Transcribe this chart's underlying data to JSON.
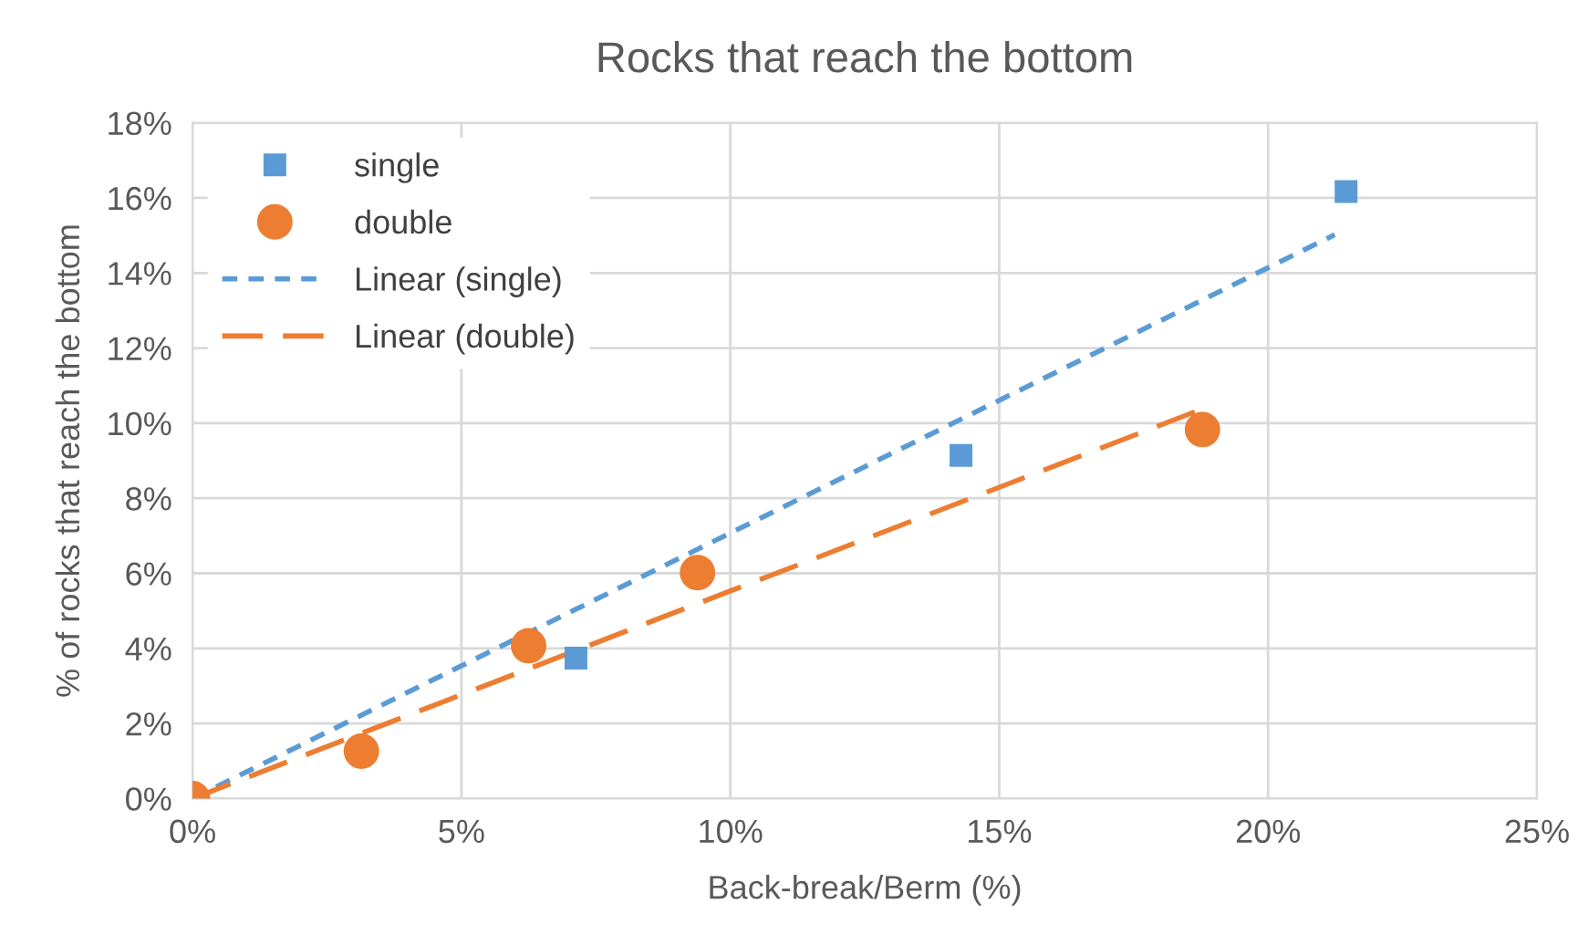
{
  "chart_data": {
    "type": "scatter",
    "title": "Rocks that reach the bottom",
    "xlabel": "Back-break/Berm (%)",
    "ylabel": "% of rocks that reach the bottom",
    "series": [
      {
        "name": "single",
        "color": "#5b9bd5",
        "marker": "square",
        "x": [
          7.13,
          14.29,
          21.45
        ],
        "values": [
          3.74,
          9.14,
          16.17
        ]
      },
      {
        "name": "double",
        "color": "#ed7d31",
        "marker": "circle",
        "x": [
          0,
          3.14,
          6.25,
          9.39,
          18.78
        ],
        "values": [
          0,
          1.26,
          4.07,
          6.02,
          9.83
        ]
      },
      {
        "name": "Linear (single)",
        "type": "line",
        "color": "#5b9bd5",
        "line_style": "dotted",
        "x": [
          0,
          21.24
        ],
        "values": [
          0,
          15.02
        ]
      },
      {
        "name": "Linear (double)",
        "type": "line",
        "color": "#ed7d31",
        "line_style": "dashed",
        "x": [
          0,
          18.78
        ],
        "values": [
          0,
          10.38
        ]
      }
    ],
    "xlim": [
      0,
      25
    ],
    "xticks": [
      {
        "value": 0,
        "label": "0%"
      },
      {
        "value": 5,
        "label": "5%"
      },
      {
        "value": 10,
        "label": "10%"
      },
      {
        "value": 15,
        "label": "15%"
      },
      {
        "value": 20,
        "label": "20%"
      },
      {
        "value": 25,
        "label": "25%"
      }
    ],
    "ylim": [
      0,
      18
    ],
    "yticks": [
      {
        "value": 0,
        "label": "0%"
      },
      {
        "value": 2,
        "label": "2%"
      },
      {
        "value": 4,
        "label": "4%"
      },
      {
        "value": 6,
        "label": "6%"
      },
      {
        "value": 8,
        "label": "8%"
      },
      {
        "value": 10,
        "label": "10%"
      },
      {
        "value": 12,
        "label": "12%"
      },
      {
        "value": 14,
        "label": "14%"
      },
      {
        "value": 16,
        "label": "16%"
      },
      {
        "value": 18,
        "label": "18%"
      }
    ],
    "grid": true,
    "legend": "top left"
  }
}
